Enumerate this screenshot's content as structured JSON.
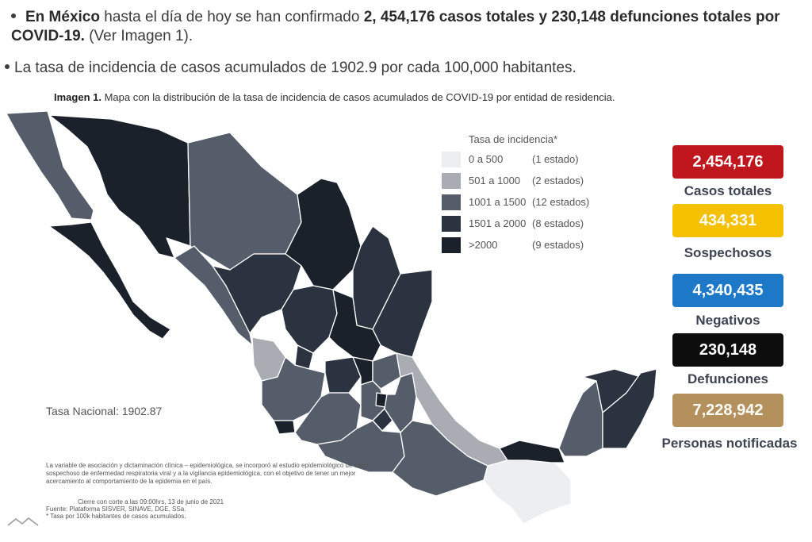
{
  "intro": {
    "line1_bold1": "En México",
    "line1_text1": " hasta el día de hoy se han confirmado ",
    "line1_bold2": "2, 454,176 casos totales y 230,148 defunciones totales por COVID-19.",
    "line1_text2": " (Ver Imagen 1).",
    "line2": "La tasa de incidencia de casos acumulados de 1902.9 por cada 100,000 habitantes."
  },
  "caption": {
    "bold": "Imagen 1.",
    "text": " Mapa con la distribución de la tasa de incidencia de casos acumulados de COVID-19 por entidad de residencia."
  },
  "legend": {
    "title": "Tasa de incidencia*",
    "items": [
      {
        "range": "0 a   500",
        "count": "(1 estado)",
        "color": "#eceeef"
      },
      {
        "range": "501 a   1000",
        "count": "(2 estados)",
        "color": "#a9adb3"
      },
      {
        "range": "1001 a   1500",
        "count": "(12 estados)",
        "color": "#555d6a"
      },
      {
        "range": "1501 a   2000",
        "count": "(8 estados)",
        "color": "#2b3340"
      },
      {
        "range": ">2000",
        "count": "(9 estados)",
        "color": "#1a212b"
      }
    ]
  },
  "tasa_nacional": "Tasa Nacional: 1902.87",
  "notes": {
    "text": "La variable de asociación y dictaminación clínica – epidemiológica, se incorporó al estudio epidemiológico de caso sospechoso de enfermedad respiratoria viral y a la vigilancia epidemiológica, con el objetivo de tener un mejor acercamiento al comportamiento de la epidemia en el país.",
    "cierre": "Cierre con corte a las 09:00hrs, 13 de junio de 2021",
    "fuente": "Fuente: Plataforma SISVER, SINAVE, DGE, SSa.",
    "tasa": "* Tasa por 100k habitantes de casos acumulados."
  },
  "stats": [
    {
      "value": "2,454,176",
      "label": "Casos totales",
      "color": "#c0161d"
    },
    {
      "value": "434,331",
      "label": "Sospechosos",
      "color": "#f5c000"
    },
    {
      "value": "4,340,435",
      "label": "Negativos",
      "color": "#1e78c8"
    },
    {
      "value": "230,148",
      "label": "Defunciones",
      "color": "#0d0d0d"
    },
    {
      "value": "7,228,942",
      "label": "Personas notificadas",
      "color": "#b4915c"
    }
  ]
}
